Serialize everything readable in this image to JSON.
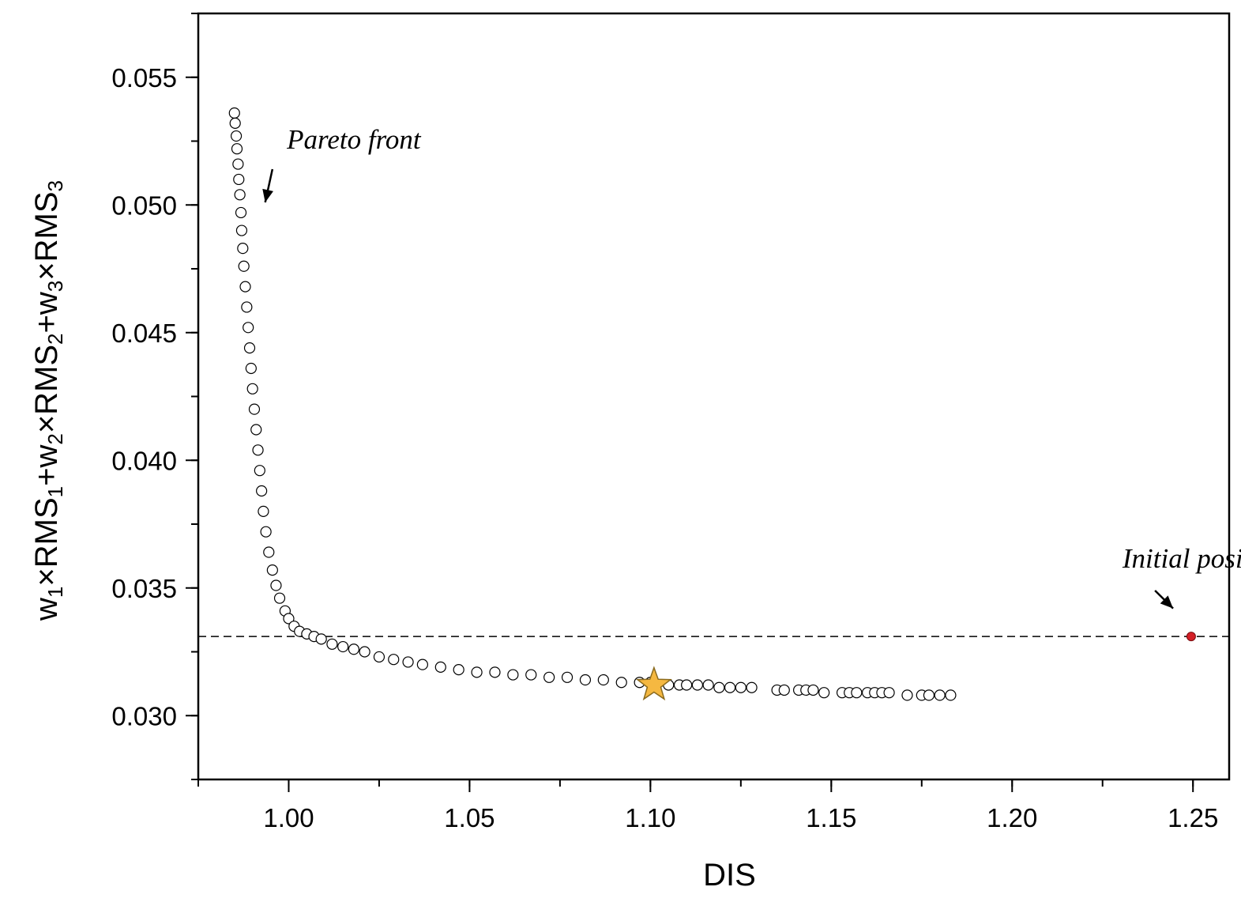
{
  "chart_data": {
    "type": "scatter",
    "title": "",
    "xlabel": "DIS",
    "ylabel": {
      "parts": [
        "w",
        "1",
        "×RMS",
        "1",
        "+w",
        "2",
        "×RMS",
        "2",
        "+w",
        "3",
        "×RMS",
        "3"
      ],
      "subscript_flags": [
        false,
        true,
        false,
        true,
        false,
        true,
        false,
        true,
        false,
        true,
        false,
        true
      ]
    },
    "xlim": [
      0.975,
      1.26
    ],
    "ylim": [
      0.0275,
      0.0575
    ],
    "x_ticks": [
      1.0,
      1.05,
      1.1,
      1.15,
      1.2,
      1.25
    ],
    "x_tick_labels": [
      "1.00",
      "1.05",
      "1.10",
      "1.15",
      "1.20",
      "1.25"
    ],
    "x_minor_step": 0.025,
    "y_ticks": [
      0.03,
      0.035,
      0.04,
      0.045,
      0.05,
      0.055
    ],
    "y_tick_labels": [
      "0.030",
      "0.035",
      "0.040",
      "0.045",
      "0.050",
      "0.055"
    ],
    "y_minor_step": 0.0025,
    "grid": false,
    "series": [
      {
        "style": "open-circle",
        "color": "#000000",
        "fill": "#ffffff",
        "x": [
          0.985,
          0.9852,
          0.9855,
          0.9857,
          0.986,
          0.9862,
          0.9865,
          0.9868,
          0.987,
          0.9873,
          0.9876,
          0.988,
          0.9884,
          0.9888,
          0.9892,
          0.9896,
          0.99,
          0.9905,
          0.991,
          0.9915,
          0.992,
          0.9925,
          0.993,
          0.9937,
          0.9945,
          0.9955,
          0.9965,
          0.9975,
          0.999,
          1.0,
          1.0015,
          1.003,
          1.005,
          1.007,
          1.009,
          1.012,
          1.015,
          1.018,
          1.021,
          1.025,
          1.029,
          1.033,
          1.037,
          1.042,
          1.047,
          1.052,
          1.057,
          1.062,
          1.067,
          1.072,
          1.077,
          1.082,
          1.087,
          1.092,
          1.097,
          1.1,
          1.105,
          1.108,
          1.11,
          1.113,
          1.116,
          1.119,
          1.122,
          1.125,
          1.128,
          1.135,
          1.137,
          1.141,
          1.143,
          1.145,
          1.148,
          1.153,
          1.155,
          1.157,
          1.16,
          1.162,
          1.164,
          1.166,
          1.171,
          1.175,
          1.177,
          1.18,
          1.183
        ],
        "y": [
          0.0536,
          0.0532,
          0.0527,
          0.0522,
          0.0516,
          0.051,
          0.0504,
          0.0497,
          0.049,
          0.0483,
          0.0476,
          0.0468,
          0.046,
          0.0452,
          0.0444,
          0.0436,
          0.0428,
          0.042,
          0.0412,
          0.0404,
          0.0396,
          0.0388,
          0.038,
          0.0372,
          0.0364,
          0.0357,
          0.0351,
          0.0346,
          0.0341,
          0.0338,
          0.0335,
          0.0333,
          0.0332,
          0.0331,
          0.033,
          0.0328,
          0.0327,
          0.0326,
          0.0325,
          0.0323,
          0.0322,
          0.0321,
          0.032,
          0.0319,
          0.0318,
          0.0317,
          0.0317,
          0.0316,
          0.0316,
          0.0315,
          0.0315,
          0.0314,
          0.0314,
          0.0313,
          0.0313,
          0.0313,
          0.0312,
          0.0312,
          0.0312,
          0.0312,
          0.0312,
          0.0311,
          0.0311,
          0.0311,
          0.0311,
          0.031,
          0.031,
          0.031,
          0.031,
          0.031,
          0.0309,
          0.0309,
          0.0309,
          0.0309,
          0.0309,
          0.0309,
          0.0309,
          0.0309,
          0.0308,
          0.0308,
          0.0308,
          0.0308,
          0.0308
        ]
      }
    ],
    "highlight_point": {
      "x": 1.101,
      "y": 0.0312,
      "marker": "star",
      "color": "#f5b841",
      "stroke": "#8a6a1e"
    },
    "initial_point": {
      "x": 1.2495,
      "y": 0.0331,
      "marker": "dot",
      "color": "#d41f26"
    },
    "reference_line": {
      "y": 0.0331,
      "style": "dashed"
    },
    "annotations": [
      {
        "text": "Pareto front",
        "x": 0.9995,
        "y": 0.0522,
        "arrow_from": [
          0.9955,
          0.0514
        ],
        "arrow_to": [
          0.9935,
          0.0501
        ]
      },
      {
        "text": "Initial position",
        "x": 1.2305,
        "y": 0.0358,
        "arrow_from": [
          1.2395,
          0.0349
        ],
        "arrow_to": [
          1.2445,
          0.0342
        ]
      }
    ]
  }
}
